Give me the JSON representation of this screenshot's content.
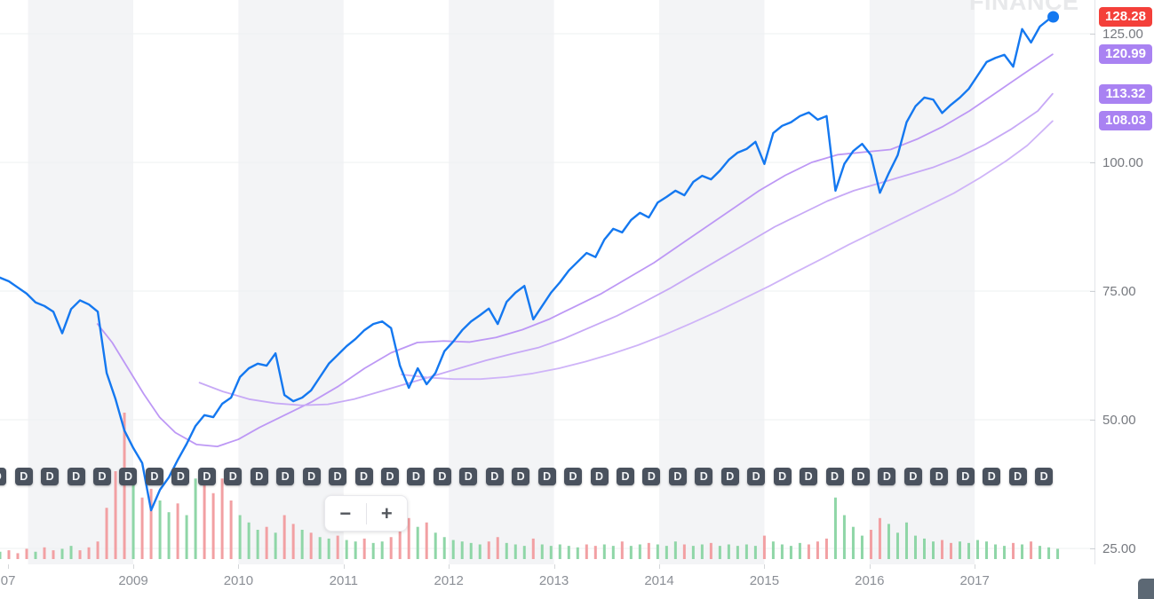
{
  "watermark": "FINANCE",
  "controls": {
    "zoom_out": "−",
    "zoom_in": "+"
  },
  "price_badge": {
    "text": "128.28",
    "price": 128.28,
    "color": "#f4403a"
  },
  "ma_badges": [
    {
      "text": "120.99",
      "price": 120.99,
      "color": "#a982f2"
    },
    {
      "text": "113.32",
      "price": 113.32,
      "color": "#a982f2"
    },
    {
      "text": "108.03",
      "price": 108.03,
      "color": "#a982f2"
    }
  ],
  "chart_data": {
    "type": "line",
    "title": "",
    "xlabel": "",
    "ylabel": "",
    "x_axis": {
      "labels": [
        {
          "text": "07",
          "year": 2007.81
        },
        {
          "text": "2009",
          "year": 2009
        },
        {
          "text": "2010",
          "year": 2010
        },
        {
          "text": "2011",
          "year": 2011
        },
        {
          "text": "2012",
          "year": 2012
        },
        {
          "text": "2013",
          "year": 2013
        },
        {
          "text": "2014",
          "year": 2014
        },
        {
          "text": "2015",
          "year": 2015
        },
        {
          "text": "2016",
          "year": 2016
        },
        {
          "text": "2017",
          "year": 2017
        }
      ]
    },
    "y_axis": {
      "ticks": [
        {
          "text": "125.00",
          "price": 125
        },
        {
          "text": "100.00",
          "price": 100
        },
        {
          "text": "75.00",
          "price": 75
        },
        {
          "text": "50.00",
          "price": 50
        },
        {
          "text": "25.00",
          "price": 25
        }
      ],
      "range": [
        20,
        130
      ],
      "grid": true
    },
    "colors": {
      "price_line": "#1478f0",
      "price_dot": "#1478f0",
      "ma_lines": [
        "#bd98f5",
        "#c7a9f6",
        "#cfb4f8"
      ],
      "vol_up": "#8fd6a7",
      "vol_down": "#f2a0a3",
      "dividend_bg": "#4a525e",
      "band": "#f3f4f6",
      "grid": "#eef0f2"
    },
    "price_series": {
      "name": "price",
      "last_value": 128.28,
      "start_year": 2007.733,
      "step_years": 0.0845,
      "prices": [
        77.6,
        76.9,
        75.7,
        74.5,
        72.8,
        72.1,
        71.0,
        66.8,
        71.5,
        73.2,
        72.4,
        71.0,
        59.1,
        54.0,
        47.9,
        44.5,
        41.6,
        32.4,
        36.4,
        38.8,
        42.2,
        45.3,
        48.8,
        50.9,
        50.5,
        53.1,
        54.3,
        58.3,
        60.0,
        60.9,
        60.5,
        62.9,
        54.8,
        53.6,
        54.3,
        55.7,
        58.3,
        60.9,
        62.6,
        64.3,
        65.7,
        67.4,
        68.6,
        69.1,
        67.8,
        60.5,
        56.2,
        60.0,
        56.9,
        59.1,
        63.3,
        65.2,
        67.4,
        69.1,
        70.3,
        71.6,
        68.6,
        72.9,
        74.7,
        76.0,
        69.5,
        72.1,
        74.7,
        76.7,
        79.0,
        80.7,
        82.4,
        81.6,
        85.0,
        87.1,
        86.4,
        88.8,
        90.2,
        89.3,
        92.2,
        93.3,
        94.5,
        93.6,
        96.2,
        97.4,
        96.7,
        98.4,
        100.5,
        101.9,
        102.6,
        104.0,
        99.7,
        105.7,
        107.1,
        107.8,
        109.0,
        109.7,
        108.3,
        109.0,
        94.5,
        99.7,
        102.2,
        103.6,
        101.4,
        94.1,
        97.9,
        101.4,
        107.8,
        110.9,
        112.6,
        112.2,
        109.6,
        111.2,
        112.6,
        114.3,
        116.9,
        119.5,
        120.3,
        120.9,
        118.6,
        125.9,
        123.3,
        126.4,
        127.8,
        128.28
      ]
    },
    "moving_averages": [
      {
        "name": "ma1",
        "end_value": 120.99,
        "points": [
          [
            2008.66,
            68.6
          ],
          [
            2008.8,
            65
          ],
          [
            2008.95,
            60
          ],
          [
            2009.1,
            55
          ],
          [
            2009.25,
            50.5
          ],
          [
            2009.4,
            47.5
          ],
          [
            2009.6,
            45.2
          ],
          [
            2009.8,
            44.8
          ],
          [
            2010.0,
            46.2
          ],
          [
            2010.2,
            48.5
          ],
          [
            2010.45,
            51
          ],
          [
            2010.7,
            53.5
          ],
          [
            2010.95,
            56.5
          ],
          [
            2011.2,
            60
          ],
          [
            2011.45,
            63
          ],
          [
            2011.7,
            65
          ],
          [
            2011.95,
            65.3
          ],
          [
            2012.2,
            65.1
          ],
          [
            2012.45,
            66
          ],
          [
            2012.7,
            67.5
          ],
          [
            2012.95,
            69.5
          ],
          [
            2013.2,
            72
          ],
          [
            2013.45,
            74.5
          ],
          [
            2013.7,
            77.5
          ],
          [
            2013.95,
            80.5
          ],
          [
            2014.2,
            84
          ],
          [
            2014.45,
            87.5
          ],
          [
            2014.7,
            91
          ],
          [
            2014.95,
            94.5
          ],
          [
            2015.2,
            97.5
          ],
          [
            2015.45,
            100
          ],
          [
            2015.7,
            101.5
          ],
          [
            2015.95,
            102
          ],
          [
            2016.2,
            102.5
          ],
          [
            2016.45,
            104.5
          ],
          [
            2016.7,
            107
          ],
          [
            2016.95,
            110
          ],
          [
            2017.2,
            113.5
          ],
          [
            2017.45,
            117
          ],
          [
            2017.74,
            120.99
          ]
        ]
      },
      {
        "name": "ma2",
        "end_value": 113.32,
        "points": [
          [
            2009.63,
            57.2
          ],
          [
            2009.85,
            55.5
          ],
          [
            2010.1,
            54
          ],
          [
            2010.35,
            53.2
          ],
          [
            2010.6,
            52.8
          ],
          [
            2010.85,
            53
          ],
          [
            2011.1,
            54
          ],
          [
            2011.35,
            55.5
          ],
          [
            2011.6,
            57
          ],
          [
            2011.85,
            58.5
          ],
          [
            2012.1,
            60
          ],
          [
            2012.35,
            61.5
          ],
          [
            2012.6,
            62.8
          ],
          [
            2012.85,
            64
          ],
          [
            2013.1,
            65.8
          ],
          [
            2013.35,
            68
          ],
          [
            2013.6,
            70.2
          ],
          [
            2013.85,
            72.8
          ],
          [
            2014.1,
            75.5
          ],
          [
            2014.35,
            78.5
          ],
          [
            2014.6,
            81.5
          ],
          [
            2014.85,
            84.5
          ],
          [
            2015.1,
            87.5
          ],
          [
            2015.35,
            90
          ],
          [
            2015.6,
            92.5
          ],
          [
            2015.85,
            94.5
          ],
          [
            2016.1,
            96
          ],
          [
            2016.35,
            97.5
          ],
          [
            2016.6,
            99
          ],
          [
            2016.85,
            101
          ],
          [
            2017.1,
            103.5
          ],
          [
            2017.35,
            106.5
          ],
          [
            2017.6,
            110
          ],
          [
            2017.74,
            113.32
          ]
        ]
      },
      {
        "name": "ma3",
        "end_value": 108.03,
        "points": [
          [
            2011.55,
            58.8
          ],
          [
            2011.8,
            58.2
          ],
          [
            2012.05,
            57.9
          ],
          [
            2012.3,
            57.9
          ],
          [
            2012.55,
            58.3
          ],
          [
            2012.8,
            59
          ],
          [
            2013.05,
            60
          ],
          [
            2013.3,
            61.3
          ],
          [
            2013.55,
            62.8
          ],
          [
            2013.8,
            64.5
          ],
          [
            2014.05,
            66.5
          ],
          [
            2014.3,
            68.7
          ],
          [
            2014.55,
            71
          ],
          [
            2014.8,
            73.5
          ],
          [
            2015.05,
            76
          ],
          [
            2015.3,
            78.7
          ],
          [
            2015.55,
            81.3
          ],
          [
            2015.8,
            84
          ],
          [
            2016.05,
            86.5
          ],
          [
            2016.3,
            89
          ],
          [
            2016.55,
            91.5
          ],
          [
            2016.8,
            94
          ],
          [
            2017.05,
            97
          ],
          [
            2017.3,
            100.3
          ],
          [
            2017.5,
            103.3
          ],
          [
            2017.74,
            108.03
          ]
        ]
      }
    ],
    "volume": {
      "normalized_max": 100,
      "start_year": 2007.733,
      "step_years": 0.0845,
      "values": [
        5,
        6,
        4,
        7,
        5,
        8,
        6,
        7,
        9,
        6,
        8,
        12,
        35,
        60,
        100,
        55,
        42,
        48,
        40,
        32,
        38,
        30,
        55,
        60,
        45,
        55,
        40,
        30,
        25,
        20,
        22,
        18,
        30,
        24,
        20,
        18,
        15,
        14,
        16,
        13,
        12,
        14,
        11,
        12,
        15,
        33,
        28,
        22,
        25,
        18,
        15,
        13,
        12,
        11,
        10,
        12,
        15,
        11,
        10,
        9,
        14,
        10,
        9,
        10,
        9,
        8,
        10,
        9,
        10,
        9,
        12,
        9,
        10,
        11,
        10,
        9,
        12,
        10,
        9,
        10,
        11,
        9,
        10,
        9,
        10,
        9,
        16,
        12,
        10,
        9,
        11,
        10,
        12,
        14,
        42,
        30,
        22,
        16,
        20,
        28,
        24,
        18,
        25,
        16,
        14,
        12,
        13,
        11,
        12,
        11,
        13,
        12,
        10,
        9,
        11,
        10,
        12,
        9,
        8,
        7
      ],
      "directions": "grrrgrrggrrrrrrgrrggrggrrrrgggrgrrgrggrggrggrrrgrggggggrrgggrgggggrrggrggrgggrggrgggggrggggrrrggggrrggggggrrggggggrgrggg"
    },
    "dividend_markers": {
      "label": "D",
      "start_year": 2007.71,
      "interval_years": 0.2487,
      "count": 41
    }
  }
}
